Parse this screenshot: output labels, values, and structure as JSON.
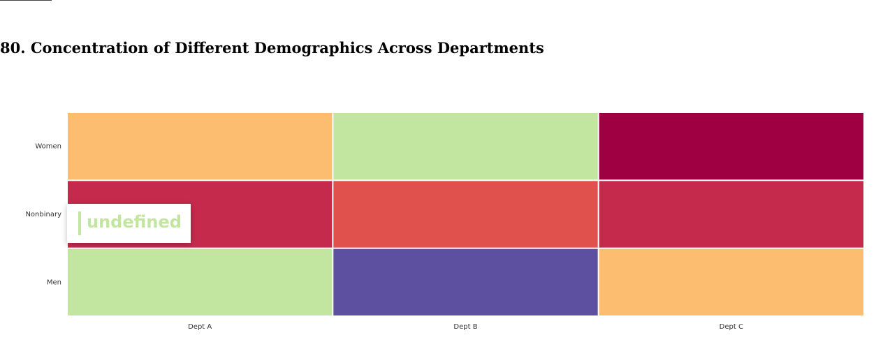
{
  "page": {
    "title": "80. Concentration of Different Demographics Across Departments"
  },
  "tooltip": {
    "text": "undefined",
    "color": "#c2e59f"
  },
  "chart_data": {
    "type": "heatmap",
    "title": "",
    "x_categories": [
      "Dept A",
      "Dept B",
      "Dept C"
    ],
    "y_categories": [
      "Women",
      "Nonbinary",
      "Men"
    ],
    "cell_colors": [
      [
        "#fdbd70",
        "#c2e59f",
        "#9e0041"
      ],
      [
        "#c52a4c",
        "#e0504d",
        "#c52a4c"
      ],
      [
        "#c2e59f",
        "#5e50a1",
        "#fdbd70"
      ]
    ],
    "colormap": "Spectral",
    "grid": false,
    "legend": "none"
  }
}
